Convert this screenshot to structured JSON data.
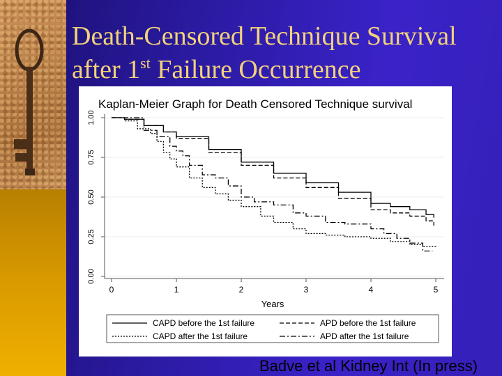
{
  "slide": {
    "title_line1": "Death-Censored Technique Survival",
    "title_line2_pre": "after 1",
    "title_line2_sup": "st",
    "title_line2_post": " Failure Occurrence",
    "citation": "Badve et al Kidney Int (In press)"
  },
  "chart_data": {
    "type": "line",
    "title": "Kaplan-Meier Graph for Death Censored Technique survival",
    "xlabel": "Years",
    "ylabel": "",
    "xlim": [
      0,
      5
    ],
    "ylim": [
      0,
      1
    ],
    "x_ticks": [
      "0",
      "1",
      "2",
      "3",
      "4",
      "5"
    ],
    "y_ticks": [
      "0.00",
      "0.25",
      "0.50",
      "0.75",
      "1.00"
    ],
    "step": true,
    "series": [
      {
        "name": "CAPD before the 1st failure",
        "dash": "solid",
        "points": [
          [
            0,
            1.0
          ],
          [
            0.2,
            0.99
          ],
          [
            0.5,
            0.95
          ],
          [
            0.8,
            0.91
          ],
          [
            1.0,
            0.88
          ],
          [
            1.5,
            0.8
          ],
          [
            2.0,
            0.72
          ],
          [
            2.5,
            0.65
          ],
          [
            3.0,
            0.59
          ],
          [
            3.5,
            0.53
          ],
          [
            4.0,
            0.46
          ],
          [
            4.3,
            0.44
          ],
          [
            4.6,
            0.42
          ],
          [
            4.85,
            0.39
          ],
          [
            4.97,
            0.37
          ]
        ]
      },
      {
        "name": "APD before the 1st failure",
        "dash": "dashed",
        "points": [
          [
            0,
            1.0
          ],
          [
            0.2,
            0.99
          ],
          [
            0.5,
            0.95
          ],
          [
            0.8,
            0.91
          ],
          [
            1.0,
            0.87
          ],
          [
            1.5,
            0.78
          ],
          [
            2.0,
            0.7
          ],
          [
            2.5,
            0.62
          ],
          [
            3.0,
            0.56
          ],
          [
            3.5,
            0.49
          ],
          [
            4.0,
            0.42
          ],
          [
            4.3,
            0.4
          ],
          [
            4.6,
            0.38
          ],
          [
            4.85,
            0.35
          ],
          [
            4.97,
            0.32
          ]
        ]
      },
      {
        "name": "CAPD after the 1st failure",
        "dash": "dotted",
        "points": [
          [
            0,
            1.0
          ],
          [
            0.2,
            0.98
          ],
          [
            0.4,
            0.93
          ],
          [
            0.6,
            0.9
          ],
          [
            0.7,
            0.85
          ],
          [
            0.8,
            0.78
          ],
          [
            0.9,
            0.74
          ],
          [
            1.0,
            0.69
          ],
          [
            1.2,
            0.62
          ],
          [
            1.4,
            0.56
          ],
          [
            1.6,
            0.52
          ],
          [
            1.8,
            0.48
          ],
          [
            2.0,
            0.44
          ],
          [
            2.3,
            0.38
          ],
          [
            2.5,
            0.34
          ],
          [
            2.8,
            0.3
          ],
          [
            3.0,
            0.27
          ],
          [
            3.3,
            0.26
          ],
          [
            3.6,
            0.25
          ],
          [
            4.0,
            0.24
          ],
          [
            4.3,
            0.22
          ],
          [
            4.6,
            0.2
          ],
          [
            4.8,
            0.19
          ],
          [
            5.0,
            0.18
          ]
        ]
      },
      {
        "name": "APD after the 1st failure",
        "dash": "dashdot",
        "points": [
          [
            0,
            1.0
          ],
          [
            0.2,
            1.0
          ],
          [
            0.5,
            1.0
          ],
          [
            0.5,
            0.92
          ],
          [
            0.7,
            0.88
          ],
          [
            0.9,
            0.82
          ],
          [
            1.0,
            0.79
          ],
          [
            1.1,
            0.76
          ],
          [
            1.2,
            0.7
          ],
          [
            1.4,
            0.64
          ],
          [
            1.6,
            0.62
          ],
          [
            1.8,
            0.57
          ],
          [
            2.0,
            0.5
          ],
          [
            2.2,
            0.47
          ],
          [
            2.5,
            0.45
          ],
          [
            2.8,
            0.4
          ],
          [
            3.0,
            0.38
          ],
          [
            3.3,
            0.34
          ],
          [
            3.6,
            0.33
          ],
          [
            4.0,
            0.3
          ],
          [
            4.2,
            0.27
          ],
          [
            4.4,
            0.24
          ],
          [
            4.6,
            0.21
          ],
          [
            4.8,
            0.16
          ],
          [
            4.95,
            0.16
          ]
        ]
      }
    ],
    "legend_position": "bottom"
  },
  "colors": {
    "title_text": "#f2d27a",
    "line": "#000000",
    "plot_background": "#ffffff",
    "axis_gray": "#555555",
    "grid": "#e8ecef"
  }
}
